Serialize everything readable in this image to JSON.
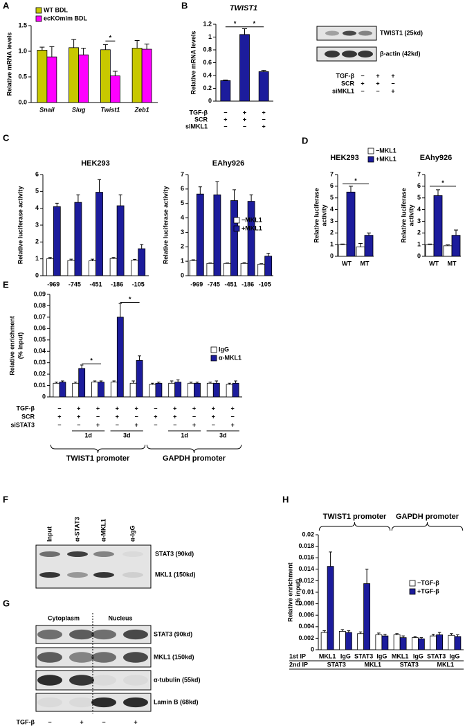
{
  "panels": [
    "A",
    "B",
    "C",
    "D",
    "E",
    "F",
    "G",
    "H"
  ],
  "chart_data": [
    {
      "type": "bar",
      "ylabel": "Relative mRNA levels",
      "categories": [
        "Snail",
        "Slug",
        "Twist1",
        "Zeb1"
      ],
      "series": [
        {
          "name": "WT BDL",
          "color": "#c8c800",
          "values": [
            1.02,
            1.07,
            1.03,
            1.06
          ],
          "errors": [
            0.06,
            0.16,
            0.1,
            0.15
          ]
        },
        {
          "name": "ecKOmim BDL",
          "color": "#ff00ff",
          "values": [
            0.89,
            0.93,
            0.52,
            1.04
          ],
          "errors": [
            0.2,
            0.13,
            0.09,
            0.1
          ]
        }
      ],
      "ylim": [
        0,
        1.5
      ],
      "yticks": [
        {
          "value": 0,
          "label": "0.0"
        },
        {
          "value": 0.5,
          "label": "0.5"
        },
        {
          "value": 1,
          "label": "1.0"
        },
        {
          "value": 1.5,
          "label": "1.5"
        }
      ],
      "annotations": [
        "*"
      ]
    },
    {
      "type": "bar",
      "title": "TWIST1",
      "ylabel": "Relative mRNA levels",
      "series": [
        {
          "color": "#1c1c9c",
          "values": [
            0.32,
            1.04,
            0.46
          ],
          "errors": [
            0.01,
            0.09,
            0.02
          ]
        }
      ],
      "ylim": [
        0,
        1.2
      ],
      "yticks": [
        0,
        0.2,
        0.4,
        0.6,
        0.8,
        1,
        1.2
      ],
      "conditions": [
        {
          "label": "TGF-β",
          "signs": [
            "−",
            "+",
            "+"
          ]
        },
        {
          "label": "SCR",
          "signs": [
            "+",
            "+",
            "−"
          ]
        },
        {
          "label": "siMKL1",
          "signs": [
            "−",
            "−",
            "+"
          ]
        }
      ],
      "annotations": [
        "*",
        "*"
      ]
    },
    {
      "type": "bar",
      "title": "HEK293",
      "ylabel": "Relative luciferase activity",
      "categories": [
        "-969",
        "-745",
        "-451",
        "-186",
        "-105"
      ],
      "series": [
        {
          "color": "#ffffff",
          "values": [
            1,
            0.9,
            0.88,
            1.02,
            0.92
          ],
          "errors": [
            0.08,
            0.08,
            0.1,
            0.06,
            0.05
          ]
        },
        {
          "color": "#1c1c9c",
          "values": [
            4.1,
            4.35,
            4.95,
            4.15,
            1.6
          ],
          "errors": [
            0.2,
            0.45,
            0.75,
            0.65,
            0.25
          ]
        }
      ],
      "ylim": [
        0,
        6
      ],
      "yticks": [
        0,
        1,
        2,
        3,
        4,
        5,
        6
      ]
    },
    {
      "type": "bar",
      "title": "EAhy926",
      "ylabel": "Relative luciferase activity",
      "categories": [
        "-969",
        "-745",
        "-451",
        "-186",
        "-105"
      ],
      "series": [
        {
          "name": "−MKL1",
          "color": "#ffffff",
          "values": [
            1.05,
            0.85,
            0.85,
            0.85,
            0.8
          ],
          "errors": [
            0.05,
            0.03,
            0.03,
            0.05,
            0.03
          ]
        },
        {
          "name": "+MKL1",
          "color": "#1c1c9c",
          "values": [
            5.65,
            5.6,
            5.2,
            5.15,
            1.35
          ],
          "errors": [
            0.5,
            0.9,
            0.75,
            0.45,
            0.2
          ]
        }
      ],
      "ylim": [
        0,
        7
      ],
      "yticks": [
        0,
        1,
        2,
        3,
        4,
        5,
        6,
        7
      ]
    },
    {
      "type": "bar",
      "title": "HEK293",
      "ylabel": [
        "Relative luciferase",
        "activity"
      ],
      "categories": [
        "WT",
        "MT"
      ],
      "series": [
        {
          "name": "−MKL1",
          "color": "#ffffff",
          "values": [
            1,
            0.8
          ],
          "errors": [
            0.05,
            0.3
          ]
        },
        {
          "name": "+MKL1",
          "color": "#1c1c9c",
          "values": [
            5.5,
            1.8
          ],
          "errors": [
            0.5,
            0.2
          ]
        }
      ],
      "ylim": [
        0,
        7
      ],
      "yticks": [
        0,
        1,
        2,
        3,
        4,
        5,
        6,
        7
      ],
      "annotations": [
        "*"
      ]
    },
    {
      "type": "bar",
      "title": "EAhy926",
      "ylabel": [
        "Relative luciferase",
        "activity"
      ],
      "categories": [
        "WT",
        "MT"
      ],
      "series": [
        {
          "color": "#ffffff",
          "values": [
            1,
            0.9
          ],
          "errors": [
            0.05,
            0.08
          ]
        },
        {
          "color": "#1c1c9c",
          "values": [
            5.2,
            1.8
          ],
          "errors": [
            0.5,
            0.45
          ]
        }
      ],
      "ylim": [
        0,
        7
      ],
      "yticks": [
        0,
        1,
        2,
        3,
        4,
        5,
        6,
        7
      ],
      "annotations": [
        "*"
      ]
    },
    {
      "type": "bar",
      "ylabel": [
        "Relative enrichment",
        "(% input)"
      ],
      "series": [
        {
          "name": "IgG",
          "color": "#ffffff",
          "values": [
            0.012,
            0.012,
            0.013,
            0.013,
            0.012,
            0.011,
            0.012,
            0.012,
            0.012,
            0.011
          ],
          "errors": [
            0.001,
            0.001,
            0.001,
            0.001,
            0.002,
            0.001,
            0.002,
            0.001,
            0.001,
            0.001
          ]
        },
        {
          "name": "α-MKL1",
          "color": "#1c1c9c",
          "values": [
            0.013,
            0.025,
            0.013,
            0.07,
            0.032,
            0.012,
            0.013,
            0.012,
            0.012,
            0.012
          ],
          "errors": [
            0.001,
            0.003,
            0.001,
            0.012,
            0.004,
            0.001,
            0.002,
            0.001,
            0.002,
            0.002
          ]
        }
      ],
      "ylim": [
        0,
        0.09
      ],
      "yticks": [
        0,
        0.01,
        0.02,
        0.03,
        0.04,
        0.05,
        0.06,
        0.07,
        0.08,
        0.09
      ],
      "conditions": [
        {
          "label": "TGF-β",
          "signs": [
            "−",
            "+",
            "+",
            "+",
            "+",
            "−",
            "+",
            "+",
            "+",
            "+"
          ]
        },
        {
          "label": "SCR",
          "signs": [
            "+",
            "+",
            "−",
            "+",
            "−",
            "+",
            "+",
            "−",
            "+",
            "−"
          ]
        },
        {
          "label": "siSTAT3",
          "signs": [
            "−",
            "−",
            "+",
            "−",
            "+",
            "−",
            "−",
            "+",
            "−",
            "+"
          ]
        }
      ],
      "groups": [
        "1d",
        "3d",
        "1d",
        "3d"
      ],
      "promoters": [
        "TWIST1 promoter",
        "GAPDH promoter"
      ],
      "annotations": [
        "*",
        "*"
      ]
    },
    {
      "type": "bar",
      "ylabel": [
        "Relative enrichment",
        "(% input)"
      ],
      "categories": [
        "MKL1",
        "IgG",
        "STAT3",
        "IgG",
        "MKL1",
        "IgG",
        "STAT3",
        "IgG"
      ],
      "series": [
        {
          "name": "−TGF-β",
          "color": "#ffffff",
          "values": [
            0.003,
            0.0032,
            0.0028,
            0.0026,
            0.0026,
            0.0021,
            0.0024,
            0.0025
          ],
          "errors": [
            0.0003,
            0.0003,
            0.0003,
            0.0003,
            0.0002,
            0.0002,
            0.0003,
            0.0003
          ]
        },
        {
          "name": "+TGF-β",
          "color": "#1c1c9c",
          "values": [
            0.0145,
            0.003,
            0.0115,
            0.0024,
            0.0021,
            0.0019,
            0.0026,
            0.0023
          ],
          "errors": [
            0.0025,
            0.0003,
            0.0025,
            0.0003,
            0.0003,
            0.0002,
            0.0004,
            0.0003
          ]
        }
      ],
      "ylim": [
        0,
        0.02
      ],
      "yticks": [
        0,
        0.002,
        0.004,
        0.006,
        0.008,
        0.01,
        0.012,
        0.014,
        0.016,
        0.018,
        0.02
      ],
      "category_row_label": "1st IP",
      "second_row": {
        "label": "2nd IP",
        "groups": [
          "STAT3",
          "MKL1",
          "STAT3",
          "MKL1"
        ]
      },
      "promoters": [
        "TWIST1 promoter",
        "GAPDH promoter"
      ]
    }
  ],
  "blots": {
    "B": {
      "bands": [
        "TWIST1 (25kd)",
        "β-actin (42kd)"
      ],
      "conditions": [
        {
          "label": "TGF-β",
          "signs": [
            "−",
            "+",
            "+"
          ]
        },
        {
          "label": "SCR",
          "signs": [
            "+",
            "+",
            "−"
          ]
        },
        {
          "label": "siMKL1",
          "signs": [
            "−",
            "−",
            "+"
          ]
        }
      ]
    },
    "F": {
      "lanes": [
        "Input",
        "α-STAT3",
        "α-MKL1",
        "α-IgG"
      ],
      "bands": [
        "STAT3 (90kd)",
        "MKL1 (150kd)"
      ]
    },
    "G": {
      "fractions": [
        "Cytoplasm",
        "Nucleus"
      ],
      "bands": [
        "STAT3 (90kd)",
        "MKL1 (150kd)",
        "α-tubulin (55kd)",
        "Lamin B (68kd)"
      ],
      "conditions": [
        {
          "label": "TGF-β",
          "signs": [
            "−",
            "+",
            "−",
            "+"
          ]
        }
      ]
    }
  }
}
